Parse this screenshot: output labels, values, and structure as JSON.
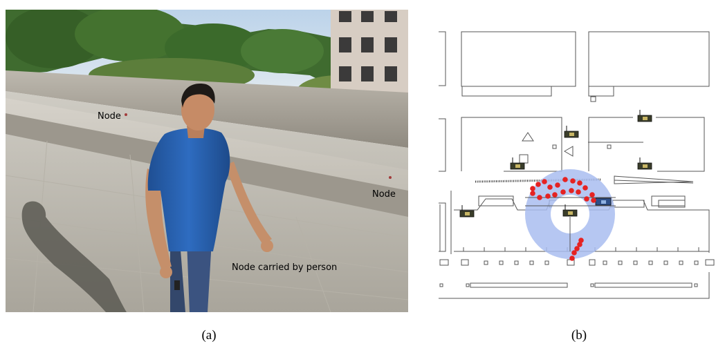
{
  "panel_a": {
    "labels": {
      "node_top": "Node",
      "node_right": "Node",
      "node_person": "Node carried by person"
    },
    "caption": "(a)"
  },
  "panel_b": {
    "caption": "(b)",
    "colors": {
      "localization_ring": "#a9bdf0",
      "estimate_points": "#e52222",
      "node_body": "#3a3d2a",
      "mobile_node": "#2d4f8a",
      "walls": "#444444"
    },
    "icons": [
      "fixed-sensor-node-icon",
      "mobile-sensor-node-icon",
      "localization-estimate-dot"
    ]
  }
}
